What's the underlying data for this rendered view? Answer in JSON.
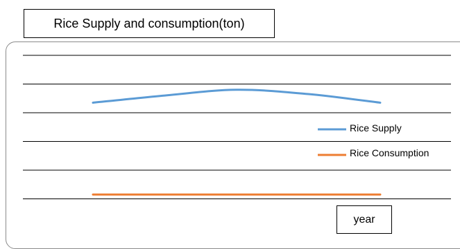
{
  "chart_data": {
    "type": "line",
    "title": "Rice Supply and consumption(ton)",
    "xlabel": "year",
    "ylabel": "",
    "grid": true,
    "legend_position": "right",
    "ylim": [
      0,
      6
    ],
    "series": [
      {
        "name": "Rice Supply",
        "color": "#5b9bd5",
        "x": [
          0,
          0.25,
          0.5,
          0.75,
          1
        ],
        "values": [
          4.35,
          4.6,
          4.8,
          4.65,
          4.35
        ]
      },
      {
        "name": "Rice Consumption",
        "color": "#ed7d31",
        "x": [
          0,
          1
        ],
        "values": [
          1.15,
          1.15
        ]
      }
    ]
  }
}
